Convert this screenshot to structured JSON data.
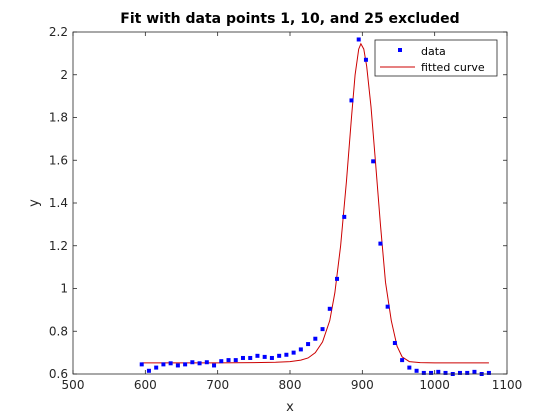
{
  "chart_data": {
    "type": "scatter",
    "title": "Fit with data points 1, 10, and 25 excluded",
    "xlabel": "x",
    "ylabel": "y",
    "xlim": [
      500,
      1100
    ],
    "ylim": [
      0.6,
      2.2
    ],
    "xticks": [
      500,
      600,
      700,
      800,
      900,
      1000,
      1100
    ],
    "yticks": [
      0.6,
      0.8,
      1.0,
      1.2,
      1.4,
      1.6,
      1.8,
      2.0,
      2.2
    ],
    "xtick_labels": [
      "500",
      "600",
      "700",
      "800",
      "900",
      "1000",
      "1100"
    ],
    "ytick_labels": [
      "0.6",
      "0.8",
      "1",
      "1.2",
      "1.4",
      "1.6",
      "1.8",
      "2",
      "2.2"
    ],
    "grid": false,
    "legend_position": "top-right",
    "series": [
      {
        "name": "data",
        "style": "markers",
        "color": "#0000ff",
        "points": [
          [
            595,
            0.645
          ],
          [
            605,
            0.615
          ],
          [
            615,
            0.63
          ],
          [
            625,
            0.645
          ],
          [
            635,
            0.65
          ],
          [
            645,
            0.64
          ],
          [
            655,
            0.645
          ],
          [
            665,
            0.655
          ],
          [
            675,
            0.65
          ],
          [
            685,
            0.655
          ],
          [
            695,
            0.64
          ],
          [
            705,
            0.66
          ],
          [
            715,
            0.665
          ],
          [
            725,
            0.665
          ],
          [
            735,
            0.675
          ],
          [
            745,
            0.675
          ],
          [
            755,
            0.685
          ],
          [
            765,
            0.68
          ],
          [
            775,
            0.675
          ],
          [
            785,
            0.685
          ],
          [
            795,
            0.69
          ],
          [
            805,
            0.7
          ],
          [
            815,
            0.715
          ],
          [
            825,
            0.74
          ],
          [
            835,
            0.765
          ],
          [
            845,
            0.81
          ],
          [
            855,
            0.905
          ],
          [
            865,
            1.045
          ],
          [
            875,
            1.335
          ],
          [
            885,
            1.88
          ],
          [
            895,
            2.165
          ],
          [
            905,
            2.07
          ],
          [
            915,
            1.595
          ],
          [
            925,
            1.21
          ],
          [
            935,
            0.915
          ],
          [
            945,
            0.745
          ],
          [
            955,
            0.665
          ],
          [
            965,
            0.63
          ],
          [
            975,
            0.615
          ],
          [
            985,
            0.605
          ],
          [
            995,
            0.605
          ],
          [
            1005,
            0.61
          ],
          [
            1015,
            0.605
          ],
          [
            1025,
            0.6
          ],
          [
            1035,
            0.605
          ],
          [
            1045,
            0.605
          ],
          [
            1055,
            0.61
          ],
          [
            1065,
            0.6
          ],
          [
            1075,
            0.605
          ]
        ]
      },
      {
        "name": "fitted curve",
        "style": "line",
        "color": "#cc0000",
        "points": [
          [
            595,
            0.652
          ],
          [
            700,
            0.652
          ],
          [
            750,
            0.653
          ],
          [
            780,
            0.655
          ],
          [
            800,
            0.658
          ],
          [
            815,
            0.665
          ],
          [
            825,
            0.675
          ],
          [
            835,
            0.7
          ],
          [
            845,
            0.75
          ],
          [
            855,
            0.85
          ],
          [
            862,
            0.98
          ],
          [
            870,
            1.2
          ],
          [
            878,
            1.5
          ],
          [
            885,
            1.8
          ],
          [
            890,
            2.0
          ],
          [
            895,
            2.12
          ],
          [
            898,
            2.145
          ],
          [
            902,
            2.12
          ],
          [
            906,
            2.04
          ],
          [
            912,
            1.85
          ],
          [
            918,
            1.6
          ],
          [
            925,
            1.3
          ],
          [
            932,
            1.03
          ],
          [
            940,
            0.85
          ],
          [
            948,
            0.73
          ],
          [
            955,
            0.68
          ],
          [
            965,
            0.658
          ],
          [
            980,
            0.653
          ],
          [
            1000,
            0.652
          ],
          [
            1075,
            0.652
          ]
        ]
      }
    ]
  }
}
